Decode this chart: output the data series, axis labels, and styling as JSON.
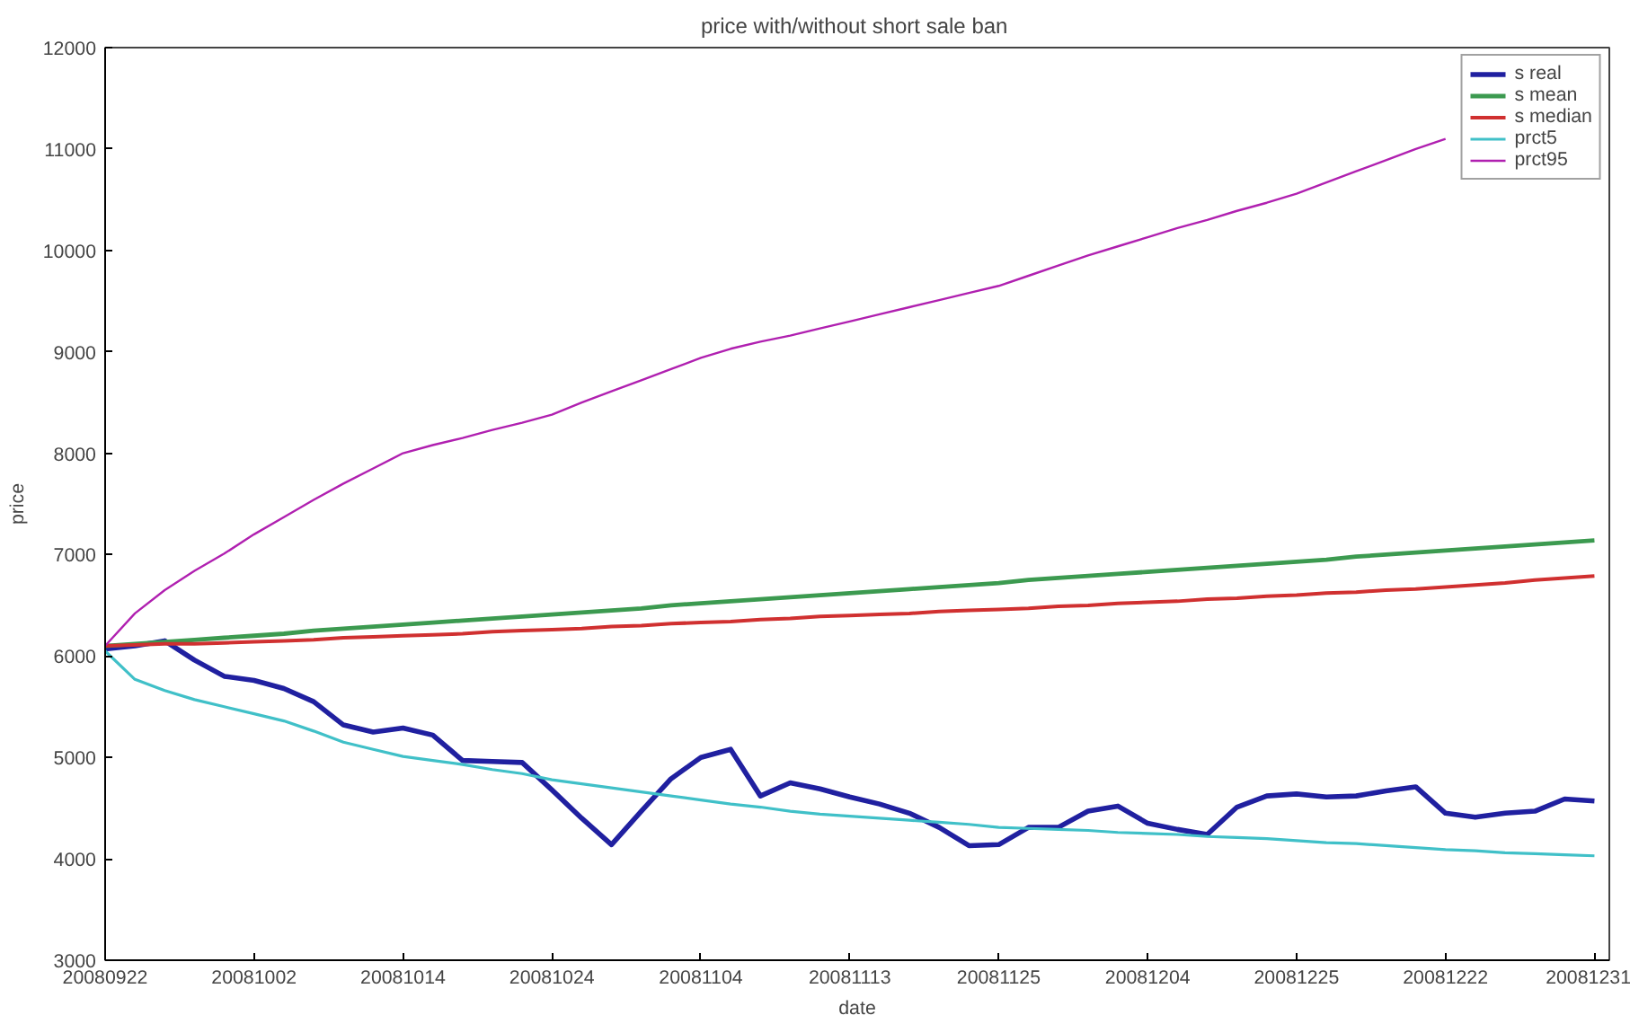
{
  "chart_data": {
    "type": "line",
    "title": "price  with/without short sale ban",
    "xlabel": "date",
    "ylabel": "price",
    "categories": [
      "20080922",
      null,
      null,
      null,
      null,
      "20081002",
      null,
      null,
      null,
      null,
      "20081014",
      null,
      null,
      null,
      null,
      "20081024",
      null,
      null,
      null,
      null,
      "20081104",
      null,
      null,
      null,
      null,
      "20081113",
      null,
      null,
      null,
      null,
      "20081125",
      null,
      null,
      null,
      null,
      "20081204",
      null,
      null,
      null,
      null,
      "20081225",
      null,
      null,
      null,
      null,
      "20081222",
      null,
      null,
      null,
      null,
      "20081231"
    ],
    "ylim": [
      3000,
      12000
    ],
    "yticks": [
      3000,
      4000,
      5000,
      6000,
      7000,
      8000,
      9000,
      10000,
      11000,
      12000
    ],
    "grid": false,
    "legend": "top right",
    "marker": "none",
    "line_style": "solid",
    "series": [
      {
        "name": "s real",
        "color": "#2020a0",
        "values": [
          6070,
          6100,
          6150,
          5960,
          5800,
          5760,
          5680,
          5550,
          5320,
          5250,
          5290,
          5220,
          4970,
          4960,
          4950,
          4680,
          4400,
          4140,
          4470,
          4790,
          5000,
          5080,
          4620,
          4750,
          4690,
          4610,
          4540,
          4450,
          4310,
          4130,
          4140,
          4310,
          4310,
          4470,
          4520,
          4350,
          4290,
          4240,
          4510,
          4620,
          4640,
          4610,
          4620,
          4670,
          4710,
          4450,
          4410,
          4450,
          4470,
          4590,
          4570
        ]
      },
      {
        "name": "s mean",
        "color": "#3c9a50",
        "values": [
          6100,
          6120,
          6140,
          6160,
          6180,
          6200,
          6220,
          6250,
          6270,
          6290,
          6310,
          6330,
          6350,
          6370,
          6390,
          6410,
          6430,
          6450,
          6470,
          6500,
          6520,
          6540,
          6560,
          6580,
          6600,
          6620,
          6640,
          6660,
          6680,
          6700,
          6720,
          6750,
          6770,
          6790,
          6810,
          6830,
          6850,
          6870,
          6890,
          6910,
          6930,
          6950,
          6980,
          7000,
          7020,
          7040,
          7060,
          7080,
          7100,
          7120,
          7140
        ]
      },
      {
        "name": "s median",
        "color": "#d03030",
        "values": [
          6100,
          6110,
          6120,
          6120,
          6130,
          6140,
          6150,
          6160,
          6180,
          6190,
          6200,
          6210,
          6220,
          6240,
          6250,
          6260,
          6270,
          6290,
          6300,
          6320,
          6330,
          6340,
          6360,
          6370,
          6390,
          6400,
          6410,
          6420,
          6440,
          6450,
          6460,
          6470,
          6490,
          6500,
          6520,
          6530,
          6540,
          6560,
          6570,
          6590,
          6600,
          6620,
          6630,
          6650,
          6660,
          6680,
          6700,
          6720,
          6750,
          6770,
          6790
        ]
      },
      {
        "name": "prct5",
        "color": "#40c0c8",
        "values": [
          6050,
          5770,
          5660,
          5570,
          5500,
          5430,
          5360,
          5260,
          5150,
          5080,
          5010,
          4970,
          4930,
          4880,
          4840,
          4780,
          4740,
          4700,
          4660,
          4620,
          4580,
          4540,
          4510,
          4470,
          4440,
          4420,
          4400,
          4380,
          4360,
          4340,
          4310,
          4300,
          4290,
          4280,
          4260,
          4250,
          4240,
          4220,
          4210,
          4200,
          4180,
          4160,
          4150,
          4130,
          4110,
          4090,
          4080,
          4060,
          4050,
          4040,
          4030
        ]
      },
      {
        "name": "prct95",
        "color": "#b020b0",
        "values": [
          6100,
          6420,
          6650,
          6840,
          7010,
          7200,
          7370,
          7540,
          7700,
          7850,
          8000,
          8080,
          8150,
          8230,
          8300,
          8380,
          8500,
          8610,
          8720,
          8830,
          8940,
          9030,
          9100,
          9160,
          9230,
          9300,
          9370,
          9440,
          9510,
          9580,
          9650,
          9750,
          9850,
          9950,
          10040,
          10130,
          10220,
          10300,
          10390,
          10470,
          10560,
          10670,
          10780,
          10890,
          11000,
          11100,
          null,
          null,
          null,
          null,
          null
        ]
      }
    ]
  }
}
